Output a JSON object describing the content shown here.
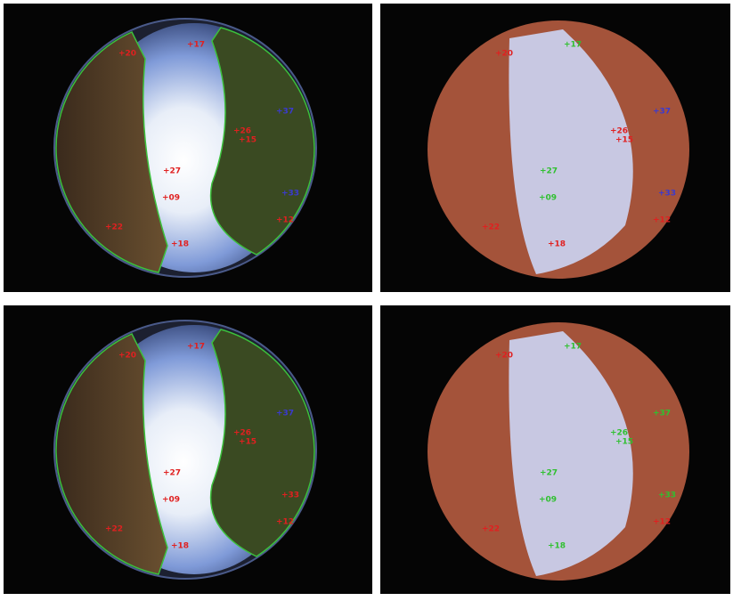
{
  "panels": [
    {
      "kind": "photo",
      "points": [
        {
          "label": "+17",
          "color": "#e02020"
        },
        {
          "label": "+20",
          "color": "#e02020"
        },
        {
          "label": "+37",
          "color": "#3a3ad0"
        },
        {
          "label": "+26",
          "color": "#e02020"
        },
        {
          "label": "+15",
          "color": "#e02020"
        },
        {
          "label": "+27",
          "color": "#e02020"
        },
        {
          "label": "+09",
          "color": "#e02020"
        },
        {
          "label": "+33",
          "color": "#3a3ad0"
        },
        {
          "label": "+12",
          "color": "#e02020"
        },
        {
          "label": "+22",
          "color": "#e02020"
        },
        {
          "label": "+18",
          "color": "#e02020"
        }
      ]
    },
    {
      "kind": "mask",
      "points": [
        {
          "label": "+17",
          "color": "#30c030"
        },
        {
          "label": "+20",
          "color": "#e02020"
        },
        {
          "label": "+37",
          "color": "#3a3ad0"
        },
        {
          "label": "+26",
          "color": "#e02020"
        },
        {
          "label": "+15",
          "color": "#e02020"
        },
        {
          "label": "+27",
          "color": "#30c030"
        },
        {
          "label": "+09",
          "color": "#30c030"
        },
        {
          "label": "+33",
          "color": "#3a3ad0"
        },
        {
          "label": "+12",
          "color": "#e02020"
        },
        {
          "label": "+22",
          "color": "#e02020"
        },
        {
          "label": "+18",
          "color": "#e02020"
        }
      ]
    },
    {
      "kind": "photo",
      "points": [
        {
          "label": "+17",
          "color": "#e02020"
        },
        {
          "label": "+20",
          "color": "#e02020"
        },
        {
          "label": "+37",
          "color": "#3a3ad0"
        },
        {
          "label": "+26",
          "color": "#e02020"
        },
        {
          "label": "+15",
          "color": "#e02020"
        },
        {
          "label": "+27",
          "color": "#e02020"
        },
        {
          "label": "+09",
          "color": "#e02020"
        },
        {
          "label": "+33",
          "color": "#e02020"
        },
        {
          "label": "+12",
          "color": "#e02020"
        },
        {
          "label": "+22",
          "color": "#e02020"
        },
        {
          "label": "+18",
          "color": "#e02020"
        }
      ]
    },
    {
      "kind": "mask",
      "points": [
        {
          "label": "+17",
          "color": "#30c030"
        },
        {
          "label": "+20",
          "color": "#e02020"
        },
        {
          "label": "+37",
          "color": "#30c030"
        },
        {
          "label": "+26",
          "color": "#30c030"
        },
        {
          "label": "+15",
          "color": "#30c030"
        },
        {
          "label": "+27",
          "color": "#30c030"
        },
        {
          "label": "+09",
          "color": "#30c030"
        },
        {
          "label": "+33",
          "color": "#30c030"
        },
        {
          "label": "+12",
          "color": "#e02020"
        },
        {
          "label": "+22",
          "color": "#e02020"
        },
        {
          "label": "+18",
          "color": "#30c030"
        }
      ]
    }
  ]
}
